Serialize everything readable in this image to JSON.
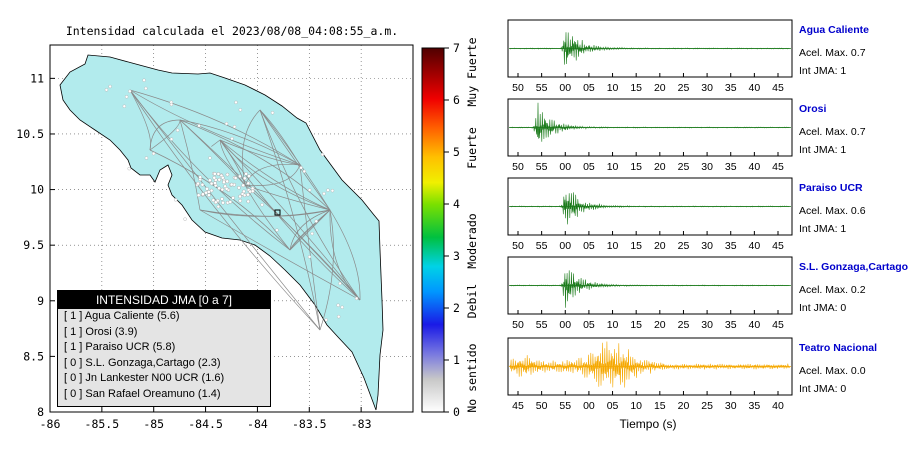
{
  "map": {
    "title": "Intensidad calculada el 2023/08/08_04:08:55_a.m.",
    "xticks": [
      "-86",
      "-85.5",
      "-85",
      "-84.5",
      "-84",
      "-83.5",
      "-83"
    ],
    "yticks": [
      "11",
      "10.5",
      "10",
      "9.5",
      "9",
      "8.5",
      "8"
    ],
    "land_color": "#b2ebed",
    "legend": {
      "title": "INTENSIDAD JMA [0 a 7]",
      "items": [
        "[ 1 ]  Agua Caliente (5.6)",
        "[ 1 ]  Orosi (3.9)",
        "[ 1 ]  Paraiso UCR (5.8)",
        "[ 0 ]  S.L. Gonzaga,Cartago (2.3)",
        "[ 0 ]  Jn Lankester N00 UCR (1.6)",
        "[ 0 ]  San Rafael Oreamuno (1.4)"
      ]
    }
  },
  "colorbar": {
    "ticks": [
      "7",
      "6",
      "5",
      "4",
      "3",
      "2",
      "1",
      "0"
    ],
    "labels": [
      "Muy Fuerte",
      "Fuerte",
      "Moderado",
      "Debil",
      "No sentido"
    ]
  },
  "waveforms": {
    "xlabel": "Tiempo (s)",
    "panels": [
      {
        "station": "Agua Caliente",
        "accel": "Acel. Max. 0.7",
        "int": "Int JMA: 1",
        "color": "#1a7a1a",
        "ticks": [
          "50",
          "55",
          "00",
          "05",
          "10",
          "15",
          "20",
          "25",
          "30",
          "35",
          "40",
          "45"
        ]
      },
      {
        "station": "Orosi",
        "accel": "Acel. Max. 0.7",
        "int": "Int JMA: 1",
        "color": "#1a7a1a",
        "ticks": [
          "50",
          "55",
          "00",
          "05",
          "10",
          "15",
          "20",
          "25",
          "30",
          "35",
          "40",
          "45"
        ]
      },
      {
        "station": "Paraiso UCR",
        "accel": "Acel. Max. 0.6",
        "int": "Int JMA: 1",
        "color": "#1a7a1a",
        "ticks": [
          "50",
          "55",
          "00",
          "05",
          "10",
          "15",
          "20",
          "25",
          "30",
          "35",
          "40",
          "45"
        ]
      },
      {
        "station": "S.L. Gonzaga,Cartago",
        "accel": "Acel. Max. 0.2",
        "int": "Int JMA: 0",
        "color": "#1a7a1a",
        "ticks": [
          "50",
          "55",
          "00",
          "05",
          "10",
          "15",
          "20",
          "25",
          "30",
          "35",
          "40",
          "45"
        ]
      },
      {
        "station": "Teatro Nacional",
        "accel": "Acel. Max. 0.0",
        "int": "Int JMA: 0",
        "color": "#f5a800",
        "ticks": [
          "45",
          "50",
          "55",
          "00",
          "05",
          "10",
          "15",
          "20",
          "25",
          "30",
          "35",
          "40"
        ]
      }
    ]
  },
  "chart_data": {
    "type": "scatter",
    "title": "Intensidad calculada el 2023/08/08_04:08:55_a.m.",
    "xlim": [
      -86,
      -82.5
    ],
    "ylim": [
      8,
      11.3
    ],
    "xticks": [
      -86,
      -85.5,
      -85,
      -84.5,
      -84,
      -83.5,
      -83
    ],
    "yticks": [
      8,
      8.5,
      9,
      9.5,
      10,
      10.5,
      11
    ],
    "grid": true,
    "colorbar": {
      "range": [
        0,
        7
      ],
      "ticks": [
        0,
        1,
        2,
        3,
        4,
        5,
        6,
        7
      ]
    },
    "legend_title": "INTENSIDAD JMA [0 a 7]",
    "stations": [
      {
        "name": "Agua Caliente",
        "jma": 1,
        "value": 5.6
      },
      {
        "name": "Orosi",
        "jma": 1,
        "value": 3.9
      },
      {
        "name": "Paraiso UCR",
        "jma": 1,
        "value": 5.8
      },
      {
        "name": "S.L. Gonzaga,Cartago",
        "jma": 0,
        "value": 2.3
      },
      {
        "name": "Jn Lankester N00 UCR",
        "jma": 0,
        "value": 1.6
      },
      {
        "name": "San Rafael Oreamuno",
        "jma": 0,
        "value": 1.4
      }
    ],
    "marker": {
      "lon": -83.84,
      "lat": 9.82
    }
  }
}
